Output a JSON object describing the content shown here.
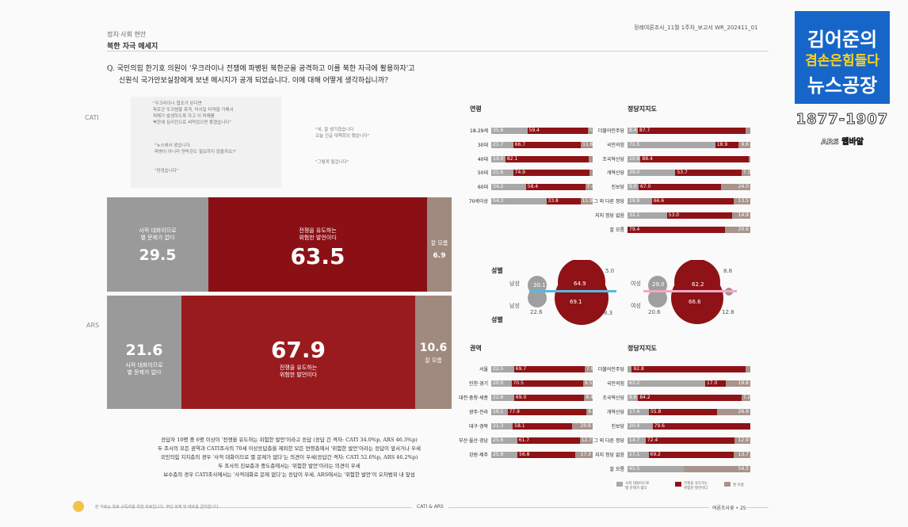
{
  "header": {
    "category": "정치·사회 현안",
    "title": "북한 자극 메세지",
    "right": "정례여론조사_11월 1주차_보고서    WR_202411_01"
  },
  "question": {
    "line1": "Q. 국민의힘 한기호 의원이 '우크라이나 전쟁에 파병된 북한군을 공격하고 이를 북한 자극에 활용하자'고",
    "line2": "신원식 국가안보실장에게 보낸 메시지가 공개 되었습니다. 이에 대해 어떻게 생각하십니까?"
  },
  "quotes": {
    "q1": "\"우크라이나 협조가 된다면\n파로군 우크렘을 폭격, 미사일 타격을 가해서\n피해가 발생하도록 하고 이 피해를\n북한에 심리전으로 써먹었으면 좋겠습니다\"",
    "q2": "\"뉴스에서 봤습니다.\n파병이 아니라 연락관도 필요하지 않을까요?\"",
    "q3": "\"양경습니다\"",
    "q4": "\"네, 잘 생기겠습니다\n오늘 긴급 대책회의 했습니다\"",
    "q5": "\"그렇게 될겁니다\""
  },
  "labels": {
    "cati": "CATI",
    "ars": "ARS"
  },
  "cati_bar": {
    "no_problem_label": "사적 대화이므로\n별 문제가 없다",
    "no_problem": "29.5",
    "war_label": "전쟁을 유도하는\n위험한 발언이다",
    "war": "63.5",
    "unsure_label": "잘 모름",
    "unsure": "6.9",
    "values": [
      29.5,
      63.5,
      6.9
    ]
  },
  "ars_bar": {
    "no_problem_label": "사적 대화이므로\n별 문제가 없다",
    "no_problem": "21.6",
    "war_label": "전쟁을 유도하는\n위험한 발언이다",
    "war": "67.9",
    "unsure_label": "잘 모름",
    "unsure": "10.6",
    "values": [
      21.6,
      67.9,
      10.6
    ]
  },
  "notes": [
    "응답자 10명 중 6명 이상이 '전쟁을 유도하는 위험한 발언'이라고 응답 (응답 간 격차: CATI 34.0%p, ARS 46.3%p)",
    "두 조사의 모든 권역과 CATI조사의 70세 이상응답층을 제외한 모든 연령층에서 '위험한 발언'이라는 응답이 앞서거나 우세",
    "국민의힘 지지층의 경우 '사적 대화이므로 별 문제가 없다'는 의견이 우세(응답간 격차: CATI 52.6%p, ARS 46.2%p)",
    "두 조사의 진보층과 중도층에서는 '위험한 발언'이라는 의견이 우세",
    "보수층의 경우 CATI조사에서는 '사적대화로 문제 없다'는 응답이 우세, ARS에서는 '위험한 발언'이 오차범위 내 앞섬"
  ],
  "sections": {
    "age": "연령",
    "party_top": "정당지지도",
    "gender_top": "성별",
    "gender_bottom": "성별",
    "region": "권역",
    "party_bottom": "정당지지도"
  },
  "age_rows": [
    {
      "label": "18-29세",
      "values": [
        35.6,
        59.4,
        5.0
      ],
      "text": [
        "35.6",
        "59.4",
        "5.0"
      ]
    },
    {
      "label": "30대",
      "values": [
        21.7,
        66.7,
        11.6
      ],
      "text": [
        "21.7",
        "66.7",
        "11.6"
      ]
    },
    {
      "label": "40대",
      "values": [
        14.0,
        82.1,
        3.9
      ],
      "text": [
        "14.0",
        "82.1",
        ""
      ]
    },
    {
      "label": "50대",
      "values": [
        21.6,
        74.9,
        3.5
      ],
      "text": [
        "21.6",
        "74.9",
        ""
      ]
    },
    {
      "label": "60대",
      "values": [
        34.2,
        58.4,
        7.4
      ],
      "text": [
        "34.2",
        "58.4",
        "7.4"
      ]
    },
    {
      "label": "70세이상",
      "values": [
        54.3,
        33.8,
        11.9
      ],
      "text": [
        "54.3",
        "33.8",
        "11.9"
      ]
    }
  ],
  "party_top_rows": [
    {
      "label": "더불어민주당",
      "values": [
        8.4,
        87.7,
        3.9
      ],
      "text": [
        "8.4",
        "87.7",
        ""
      ]
    },
    {
      "label": "국민의힘",
      "values": [
        71.5,
        18.9,
        9.6
      ],
      "text": [
        "71.5",
        "18.9",
        "9.6"
      ]
    },
    {
      "label": "조국혁신당",
      "values": [
        10.6,
        88.4,
        1.0
      ],
      "text": [
        "10.6",
        "88.4",
        ""
      ]
    },
    {
      "label": "개혁신당",
      "values": [
        39.0,
        53.7,
        7.3
      ],
      "text": [
        "39.0",
        "53.7",
        "7.3"
      ]
    },
    {
      "label": "진보당",
      "values": [
        9.0,
        67.0,
        24.0
      ],
      "text": [
        "9.0",
        "67.0",
        "24.0"
      ]
    },
    {
      "label": "그 외 다른 정당",
      "values": [
        19.9,
        66.6,
        13.5
      ],
      "text": [
        "19.9",
        "66.6",
        "13.5"
      ]
    },
    {
      "label": "지지 정당 없음",
      "values": [
        32.1,
        53.0,
        14.9
      ],
      "text": [
        "32.1",
        "53.0",
        "14.9"
      ]
    },
    {
      "label": "잘 모름",
      "values": [
        0,
        79.4,
        20.6
      ],
      "text": [
        "",
        "79.4",
        "20.6"
      ]
    }
  ],
  "region_rows": [
    {
      "label": "서울",
      "values": [
        22.5,
        69.7,
        7.8
      ],
      "text": [
        "22.5",
        "69.7",
        "7.8"
      ]
    },
    {
      "label": "인천·경기",
      "values": [
        20.0,
        70.5,
        9.5
      ],
      "text": [
        "20.0",
        "70.5",
        "9.5"
      ]
    },
    {
      "label": "대전·충청·세종",
      "values": [
        22.6,
        69.0,
        8.4
      ],
      "text": [
        "22.6",
        "69.0",
        "8.4"
      ]
    },
    {
      "label": "광주·전라",
      "values": [
        16.1,
        77.9,
        6.0
      ],
      "text": [
        "16.1",
        "77.9",
        "6.0"
      ]
    },
    {
      "label": "대구·경북",
      "values": [
        21.3,
        58.1,
        20.6
      ],
      "text": [
        "21.3",
        "58.1",
        "20.6"
      ]
    },
    {
      "label": "부산·울산·경남",
      "values": [
        25.6,
        61.7,
        12.7
      ],
      "text": [
        "25.6",
        "61.7",
        "12.7"
      ]
    },
    {
      "label": "강원·제주",
      "values": [
        25.9,
        56.8,
        17.3
      ],
      "text": [
        "25.9",
        "56.8",
        "17.3"
      ]
    }
  ],
  "party_bottom_rows": [
    {
      "label": "더불어민주당",
      "values": [
        3.5,
        92.8,
        3.7
      ],
      "text": [
        "",
        "92.8",
        ""
      ]
    },
    {
      "label": "국민의힘",
      "values": [
        63.2,
        17.0,
        19.8
      ],
      "text": [
        "63.2",
        "17.0",
        "19.8"
      ]
    },
    {
      "label": "조국혁신당",
      "values": [
        8.6,
        84.2,
        7.2
      ],
      "text": [
        "8.6",
        "84.2",
        "7.2"
      ]
    },
    {
      "label": "개혁신당",
      "values": [
        17.4,
        55.8,
        26.8
      ],
      "text": [
        "17.4",
        "55.8",
        "26.8"
      ]
    },
    {
      "label": "진보당",
      "values": [
        20.4,
        79.6,
        0
      ],
      "text": [
        "20.4",
        "79.6",
        ""
      ]
    },
    {
      "label": "그 외 다른 정당",
      "values": [
        14.7,
        72.4,
        12.9
      ],
      "text": [
        "14.7",
        "72.4",
        "12.9"
      ]
    },
    {
      "label": "지지 정당 없음",
      "values": [
        17.1,
        69.2,
        13.7
      ],
      "text": [
        "17.1",
        "69.2",
        "13.7"
      ]
    },
    {
      "label": "잘 모름",
      "values": [
        45.5,
        0,
        54.5
      ],
      "text": [
        "45.5",
        "",
        "54.5"
      ]
    }
  ],
  "gender": {
    "male_label": "남성",
    "female_label": "여성",
    "cati_male": [
      "30.1",
      "64.9",
      "5.0"
    ],
    "ars_male": [
      "22.6",
      "69.1",
      "8.3"
    ],
    "cati_female": [
      "29.0",
      "62.2",
      "8.8"
    ],
    "ars_female": [
      "20.6",
      "66.6",
      "12.8"
    ]
  },
  "legend": {
    "l1": "사적 대화이므로\n별 문제가 없다",
    "l2": "전쟁을 유도하는\n위험한 발언이다",
    "l3": "잘 모름"
  },
  "footer": {
    "left": "본 자료는 유료 구독자를 위한 자료입니다. 무단 복제 및 배포를 금지합니다.",
    "mid": "CATI & ARS",
    "right": "여론조사꽃 • 25"
  },
  "logo": {
    "line1": "김어준의",
    "line2": "겸손은힘들다",
    "line3": "뉴스공장",
    "number": "1877-1907",
    "ars": "ARS 웹바알"
  },
  "colors": {
    "red": "#8e1216",
    "grey": "#a8a8a8",
    "brown": "#a8948c",
    "logo": "#1666c9"
  }
}
